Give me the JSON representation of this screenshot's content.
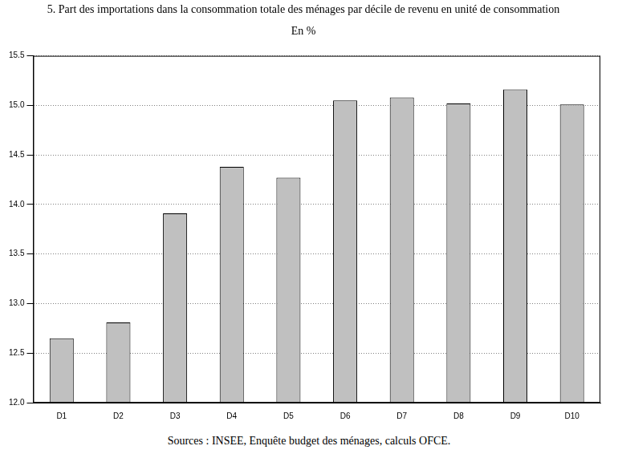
{
  "chart_data": {
    "type": "bar",
    "title": "5. Part des importations dans la consommation totale des ménages par décile de revenu en unité de consommation",
    "subtitle": "En %",
    "source": "Sources : INSEE, Enquête budget des ménages, calculs OFCE.",
    "categories": [
      "D1",
      "D2",
      "D3",
      "D4",
      "D5",
      "D6",
      "D7",
      "D8",
      "D9",
      "D10"
    ],
    "values": [
      12.65,
      12.81,
      13.91,
      14.38,
      14.27,
      15.05,
      15.08,
      15.02,
      15.16,
      15.01
    ],
    "color": "#c0c0c0",
    "ylim": [
      12,
      15.5
    ],
    "yticks": [
      {
        "value": 12,
        "label": "12.0"
      },
      12.5,
      {
        "value": 13,
        "label": "13.0"
      },
      13.5,
      {
        "value": 14,
        "label": "14.0"
      },
      14.5,
      {
        "value": 15,
        "label": "15.0"
      },
      15.5
    ],
    "grid": true
  }
}
